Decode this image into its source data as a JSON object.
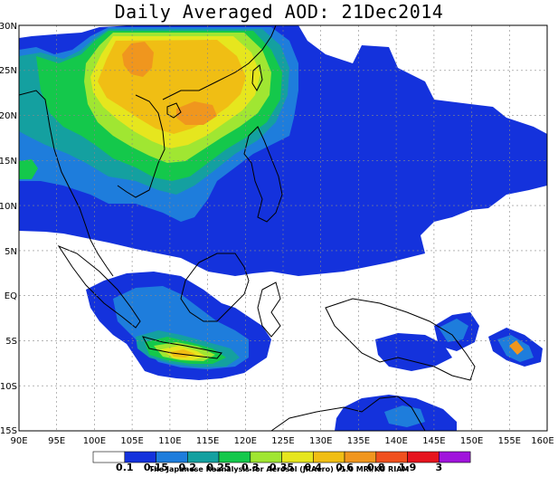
{
  "title": "Daily Averaged AOD: 21Dec2014",
  "x_axis_labels": [
    "90E",
    "95E",
    "100E",
    "105E",
    "110E",
    "115E",
    "120E",
    "125E",
    "130E",
    "135E",
    "140E",
    "145E",
    "150E",
    "155E",
    "160E"
  ],
  "y_axis_labels": [
    "30N",
    "25N",
    "20N",
    "15N",
    "10N",
    "5N",
    "EQ",
    "5S",
    "10S",
    "15S"
  ],
  "colorbar": {
    "tick_labels": [
      "0.1",
      "0.15",
      "0.2",
      "0.25",
      "0.3",
      "0.35",
      "0.4",
      "0.6",
      "0.8",
      "1.9",
      "3"
    ],
    "colors": [
      "#ffffff",
      "#1432dc",
      "#1e7ddc",
      "#14a0a0",
      "#14c84b",
      "#a0e632",
      "#e6e61e",
      "#f0be14",
      "#f0961e",
      "#f0501e",
      "#e6141e",
      "#a014dc"
    ]
  },
  "credit": "The Japanese Reanalysis for Aerosol (JRAero) v1.0 MRI/KU RIAM",
  "chart_data": {
    "type": "heatmap",
    "title": "Daily Averaged AOD: 21Dec2014",
    "variable": "AOD",
    "date": "21Dec2014",
    "lon_range": [
      90,
      160
    ],
    "lat_range": [
      -15,
      30
    ],
    "grid": true,
    "levels": [
      0.1,
      0.15,
      0.2,
      0.25,
      0.3,
      0.35,
      0.4,
      0.6,
      0.8,
      1.9,
      3
    ]
  }
}
